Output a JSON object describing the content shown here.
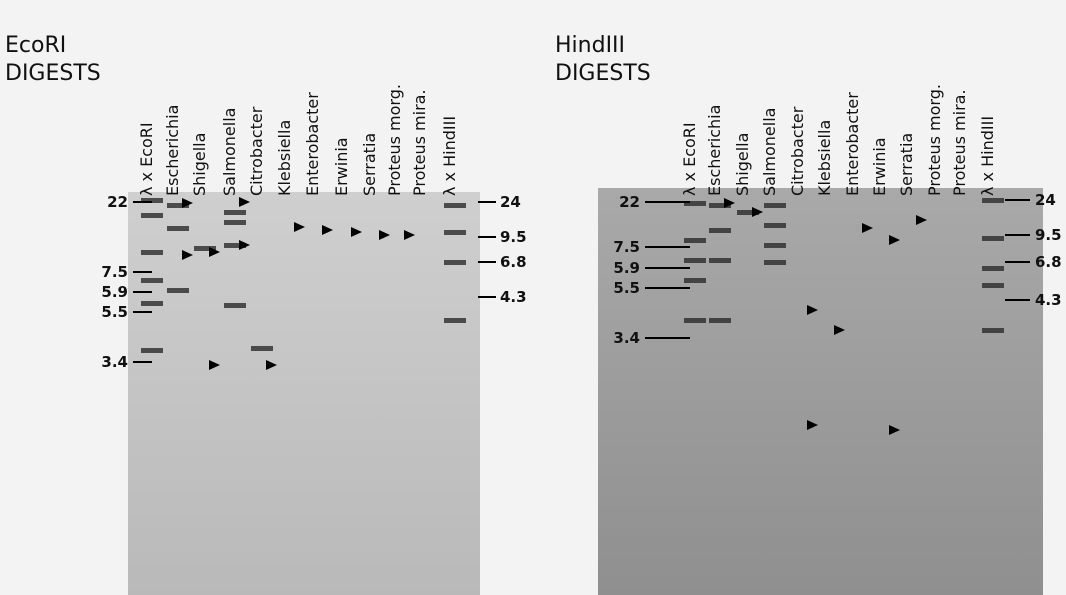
{
  "panels": [
    {
      "title": [
        "EcoRI",
        "DIGESTS"
      ],
      "lanes": [
        "λ x EcoRI",
        "Escherichia",
        "Shigella",
        "Salmonella",
        "Citrobacter",
        "Klebsiella",
        "Enterobacter",
        "Erwinia",
        "Serratia",
        "Proteus morg.",
        "Proteus mira.",
        "λ x HindIII"
      ],
      "left_markers": [
        "22",
        "7.5",
        "5.9",
        "5.5",
        "3.4"
      ],
      "right_markers": [
        "24",
        "9.5",
        "6.8",
        "4.3"
      ]
    },
    {
      "title": [
        "HindIII",
        "DIGESTS"
      ],
      "lanes": [
        "λ x EcoRI",
        "Escherichia",
        "Shigella",
        "Salmonella",
        "Citrobacter",
        "Klebsiella",
        "Enterobacter",
        "Erwinia",
        "Serratia",
        "Proteus morg.",
        "Proteus mira.",
        "λ x HindIII"
      ],
      "left_markers": [
        "22",
        "7.5",
        "5.9",
        "5.5",
        "3.4"
      ],
      "right_markers": [
        "24",
        "9.5",
        "6.8",
        "4.3"
      ]
    }
  ]
}
